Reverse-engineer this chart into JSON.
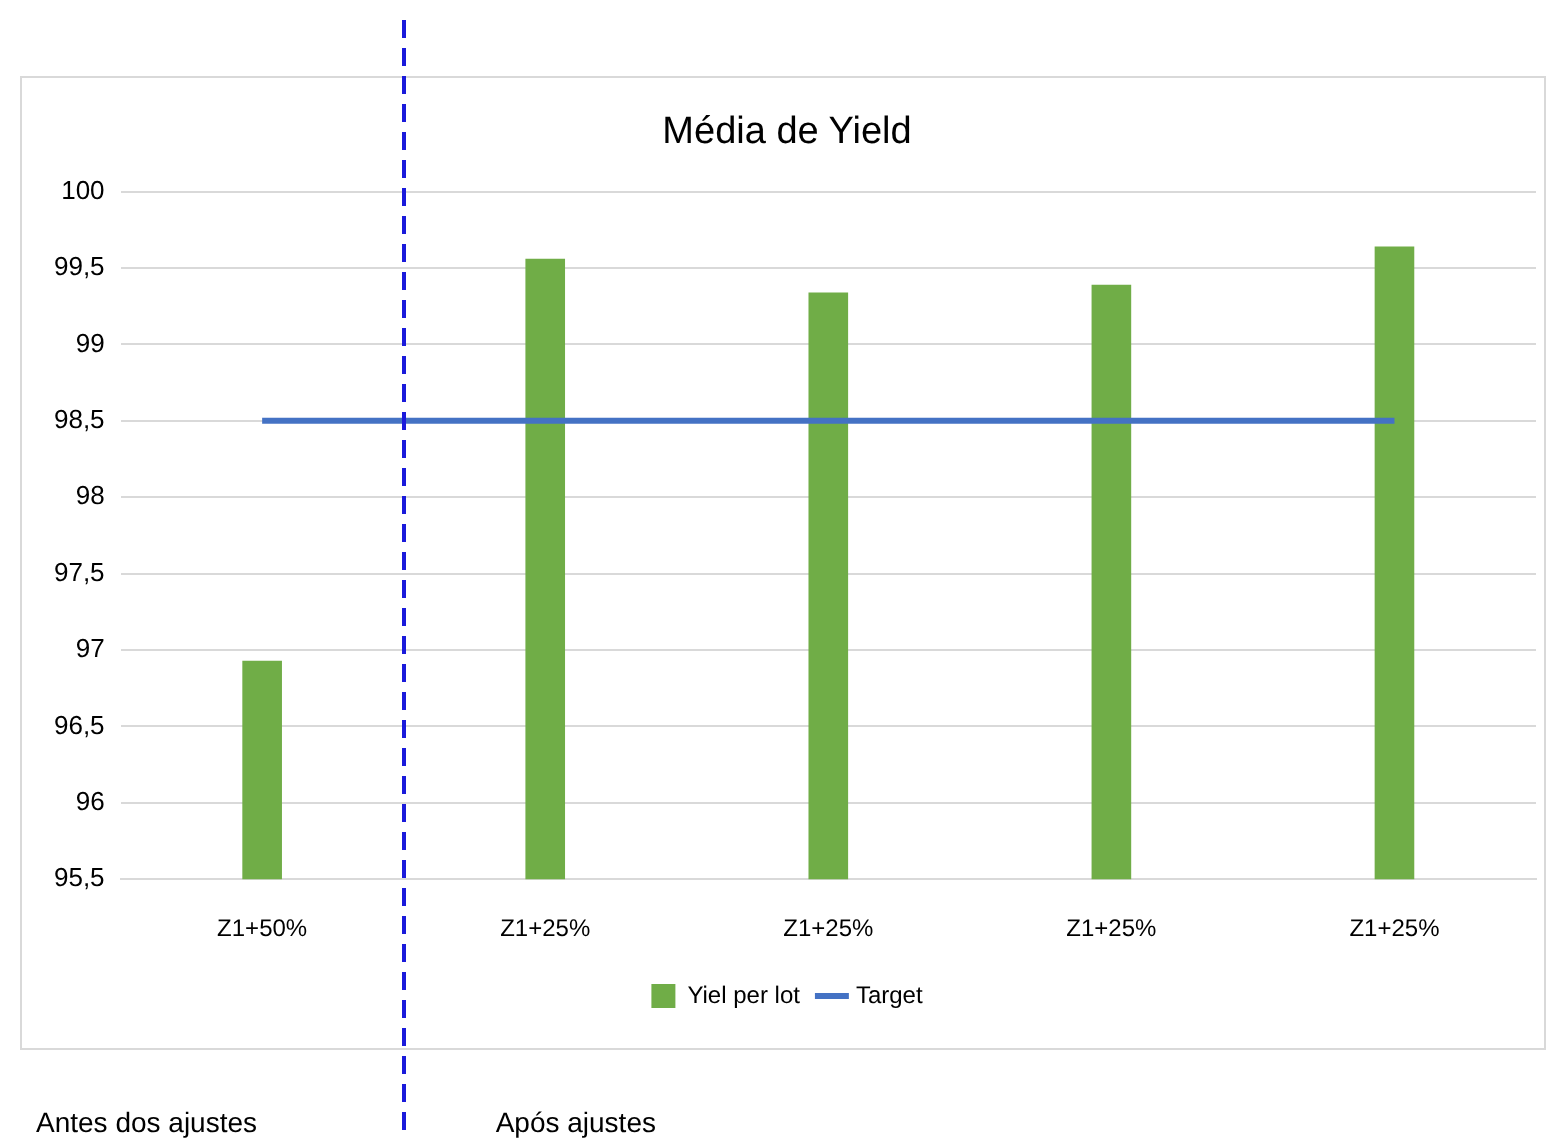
{
  "chart_data": {
    "type": "bar",
    "title": "Média de Yield",
    "categories": [
      "Z1+50%",
      "Z1+25%",
      "Z1+25%",
      "Z1+25%",
      "Z1+25%"
    ],
    "series": [
      {
        "name": "Yiel per lot",
        "color": "#70ad47",
        "values": [
          96.93,
          99.56,
          99.34,
          99.39,
          99.64
        ]
      },
      {
        "name": "Target",
        "type": "line",
        "color": "#4472c4",
        "values": [
          98.5,
          98.5,
          98.5,
          98.5,
          98.5
        ]
      }
    ],
    "ylim": [
      95.5,
      100
    ],
    "yticks": [
      {
        "value": 95.5,
        "label": "95,5"
      },
      96,
      {
        "value": 96.5,
        "label": "96,5"
      },
      97,
      {
        "value": 97.5,
        "label": "97,5"
      },
      98,
      {
        "value": 98.5,
        "label": "98,5"
      },
      99,
      {
        "value": 99.5,
        "label": "99,5"
      },
      100
    ],
    "grid": "y",
    "legend": "bottom",
    "marker": "none",
    "annotations": [
      "Antes dos ajustes",
      "Após ajustes"
    ]
  }
}
